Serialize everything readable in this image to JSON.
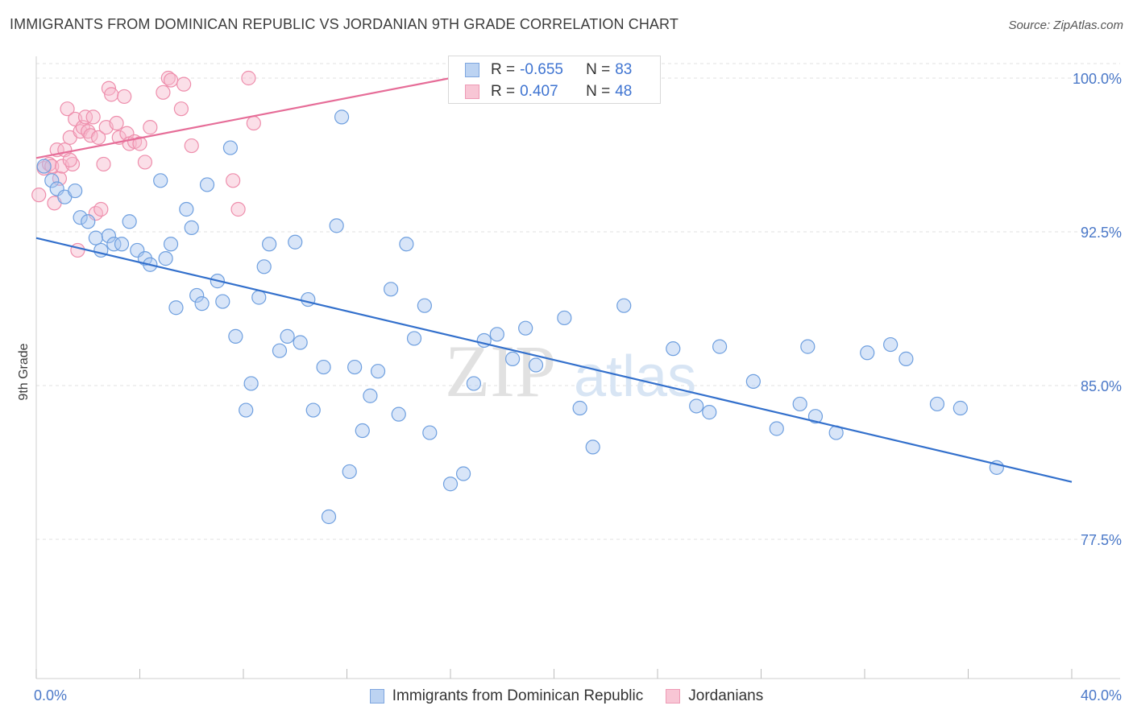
{
  "header": {
    "title": "IMMIGRANTS FROM DOMINICAN REPUBLIC VS JORDANIAN 9TH GRADE CORRELATION CHART",
    "source": "Source: ZipAtlas.com"
  },
  "watermark": {
    "zip": "ZIP",
    "atlas": "atlas"
  },
  "colors": {
    "blue_fill": "#a9c6ef",
    "blue_stroke": "#6e9fdf",
    "blue_line": "#3370cc",
    "pink_fill": "#f6b9cc",
    "pink_stroke": "#ee8eac",
    "pink_line": "#e66d98",
    "tick_text": "#4a78c8",
    "grid": "#e2e2e2"
  },
  "legend": {
    "rows": [
      {
        "r_label": "R =",
        "r_value": "-0.655",
        "n_label": "N =",
        "n_value": "83"
      },
      {
        "r_label": "R =",
        "r_value": "0.407",
        "n_label": "N =",
        "n_value": "48"
      }
    ]
  },
  "bottom_legend": {
    "items": [
      "Immigrants from Dominican Republic",
      "Jordanians"
    ]
  },
  "chart_data": {
    "type": "scatter",
    "title": "IMMIGRANTS FROM DOMINICAN REPUBLIC VS JORDANIAN 9TH GRADE CORRELATION CHART",
    "xlabel": "",
    "ylabel": "9th Grade",
    "xlim": [
      0,
      40
    ],
    "ylim": [
      70,
      101.5
    ],
    "x_tick_labels": [
      "0.0%",
      "40.0%"
    ],
    "y_ticks": [
      77.5,
      85.0,
      92.5,
      100.0
    ],
    "y_tick_labels": [
      "77.5%",
      "85.0%",
      "92.5%",
      "100.0%"
    ],
    "grid": true,
    "legend_position": "top-center",
    "series": [
      {
        "name": "Immigrants from Dominican Republic",
        "color": "#a9c6ef",
        "r": -0.655,
        "n": 83,
        "trend": {
          "x": [
            0,
            40
          ],
          "y": [
            92.2,
            80.3
          ]
        },
        "points": [
          [
            0.3,
            95.7
          ],
          [
            0.6,
            95.0
          ],
          [
            0.8,
            94.6
          ],
          [
            1.1,
            94.2
          ],
          [
            1.5,
            94.5
          ],
          [
            1.7,
            93.2
          ],
          [
            2.0,
            93.0
          ],
          [
            2.3,
            92.2
          ],
          [
            2.5,
            91.6
          ],
          [
            2.8,
            92.3
          ],
          [
            3.0,
            91.9
          ],
          [
            3.3,
            91.9
          ],
          [
            3.6,
            93.0
          ],
          [
            3.9,
            91.6
          ],
          [
            4.2,
            91.2
          ],
          [
            4.4,
            90.9
          ],
          [
            4.8,
            95.0
          ],
          [
            5.0,
            91.2
          ],
          [
            5.2,
            91.9
          ],
          [
            5.4,
            88.8
          ],
          [
            5.8,
            93.6
          ],
          [
            6.0,
            92.7
          ],
          [
            6.2,
            89.4
          ],
          [
            6.4,
            89.0
          ],
          [
            6.6,
            94.8
          ],
          [
            7.0,
            90.1
          ],
          [
            7.2,
            89.1
          ],
          [
            7.5,
            96.6
          ],
          [
            7.7,
            87.4
          ],
          [
            8.1,
            83.8
          ],
          [
            8.3,
            85.1
          ],
          [
            8.6,
            89.3
          ],
          [
            8.8,
            90.8
          ],
          [
            9.0,
            91.9
          ],
          [
            9.4,
            86.7
          ],
          [
            9.7,
            87.4
          ],
          [
            10.0,
            92.0
          ],
          [
            10.2,
            87.1
          ],
          [
            10.5,
            89.2
          ],
          [
            10.7,
            83.8
          ],
          [
            11.1,
            85.9
          ],
          [
            11.3,
            78.6
          ],
          [
            11.6,
            92.8
          ],
          [
            11.8,
            98.1
          ],
          [
            12.1,
            80.8
          ],
          [
            12.3,
            85.9
          ],
          [
            12.6,
            82.8
          ],
          [
            12.9,
            84.5
          ],
          [
            13.2,
            85.7
          ],
          [
            13.7,
            89.7
          ],
          [
            14.0,
            83.6
          ],
          [
            14.3,
            91.9
          ],
          [
            14.6,
            87.3
          ],
          [
            15.0,
            88.9
          ],
          [
            15.2,
            82.7
          ],
          [
            16.0,
            80.2
          ],
          [
            16.5,
            80.7
          ],
          [
            16.9,
            85.1
          ],
          [
            17.3,
            87.2
          ],
          [
            17.8,
            87.5
          ],
          [
            18.4,
            86.3
          ],
          [
            18.9,
            87.8
          ],
          [
            19.3,
            86.0
          ],
          [
            20.4,
            88.3
          ],
          [
            21.0,
            83.9
          ],
          [
            21.5,
            82.0
          ],
          [
            22.7,
            88.9
          ],
          [
            24.6,
            86.8
          ],
          [
            25.5,
            84.0
          ],
          [
            26.0,
            83.7
          ],
          [
            26.4,
            86.9
          ],
          [
            27.7,
            85.2
          ],
          [
            28.6,
            82.9
          ],
          [
            29.5,
            84.1
          ],
          [
            29.8,
            86.9
          ],
          [
            30.1,
            83.5
          ],
          [
            30.9,
            82.7
          ],
          [
            33.0,
            87.0
          ],
          [
            33.6,
            86.3
          ],
          [
            34.8,
            84.1
          ],
          [
            35.7,
            83.9
          ],
          [
            37.1,
            81.0
          ],
          [
            32.1,
            86.6
          ]
        ]
      },
      {
        "name": "Jordanians",
        "color": "#f6b9cc",
        "r": 0.407,
        "n": 48,
        "trend": {
          "x": [
            0,
            16
          ],
          "y": [
            96.1,
            100.0
          ]
        },
        "points": [
          [
            0.1,
            94.3
          ],
          [
            0.3,
            95.6
          ],
          [
            0.5,
            95.8
          ],
          [
            0.6,
            95.7
          ],
          [
            0.7,
            93.9
          ],
          [
            0.8,
            96.5
          ],
          [
            0.9,
            95.1
          ],
          [
            1.0,
            95.7
          ],
          [
            1.1,
            96.5
          ],
          [
            1.2,
            98.5
          ],
          [
            1.3,
            97.1
          ],
          [
            1.4,
            95.8
          ],
          [
            1.5,
            98.0
          ],
          [
            1.6,
            91.6
          ],
          [
            1.7,
            97.4
          ],
          [
            1.8,
            97.6
          ],
          [
            1.9,
            98.1
          ],
          [
            2.0,
            97.4
          ],
          [
            2.1,
            97.2
          ],
          [
            2.2,
            98.1
          ],
          [
            2.3,
            93.4
          ],
          [
            2.4,
            97.1
          ],
          [
            2.5,
            93.6
          ],
          [
            2.6,
            95.8
          ],
          [
            2.7,
            97.6
          ],
          [
            2.8,
            99.5
          ],
          [
            2.9,
            99.2
          ],
          [
            3.1,
            97.8
          ],
          [
            3.2,
            97.1
          ],
          [
            3.4,
            99.1
          ],
          [
            3.5,
            97.3
          ],
          [
            3.6,
            96.8
          ],
          [
            3.8,
            96.9
          ],
          [
            4.0,
            96.8
          ],
          [
            4.2,
            95.9
          ],
          [
            4.4,
            97.6
          ],
          [
            4.9,
            99.3
          ],
          [
            5.1,
            100.0
          ],
          [
            5.2,
            99.9
          ],
          [
            5.6,
            98.5
          ],
          [
            5.7,
            99.7
          ],
          [
            6.0,
            96.7
          ],
          [
            7.6,
            95.0
          ],
          [
            7.8,
            93.6
          ],
          [
            8.2,
            100.0
          ],
          [
            8.4,
            97.8
          ],
          [
            18.6,
            99.9
          ],
          [
            1.3,
            96.0
          ]
        ]
      }
    ]
  }
}
